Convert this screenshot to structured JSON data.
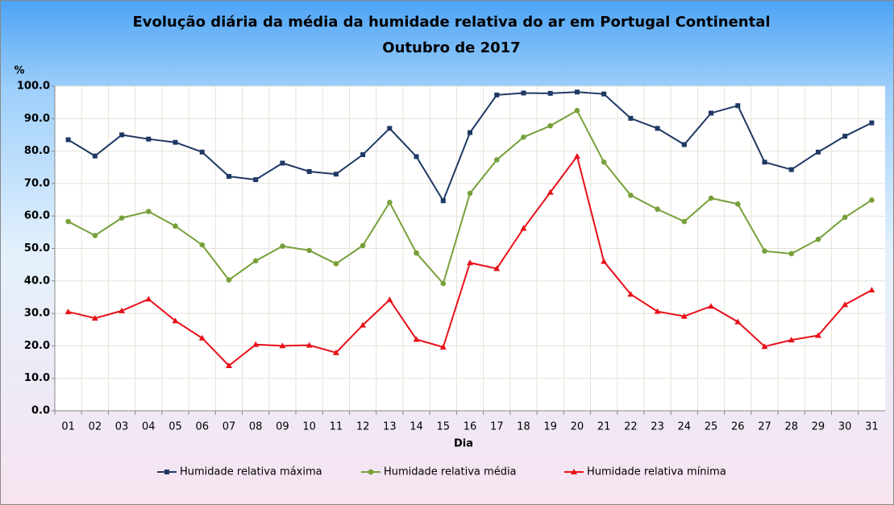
{
  "chart_data": {
    "type": "line",
    "title": "Evolução diária da média da humidade relativa do ar em Portugal Continental",
    "subtitle": "Outubro de 2017",
    "y_label": "%",
    "x_label": "Dia",
    "categories": [
      "01",
      "02",
      "03",
      "04",
      "05",
      "06",
      "07",
      "08",
      "09",
      "10",
      "11",
      "12",
      "13",
      "14",
      "15",
      "16",
      "17",
      "18",
      "19",
      "20",
      "21",
      "22",
      "23",
      "24",
      "25",
      "26",
      "27",
      "28",
      "29",
      "30",
      "31"
    ],
    "series": [
      {
        "name": "Humidade relativa máxima",
        "color": "#1f3864",
        "marker": "square",
        "values": [
          83.5,
          78.5,
          85,
          83.7,
          82.7,
          79.7,
          72.2,
          71.2,
          76.3,
          73.7,
          72.9,
          78.9,
          87,
          78.3,
          64.7,
          85.7,
          97.3,
          97.9,
          97.8,
          98.2,
          97.6,
          90.1,
          87,
          82,
          91.7,
          94,
          76.6,
          74.3,
          79.7,
          84.6,
          88.7
        ]
      },
      {
        "name": "Humidade relativa média",
        "color": "#77a03a",
        "marker": "circle",
        "values": [
          58.3,
          54,
          59.4,
          61.4,
          56.9,
          51.1,
          40.3,
          46.2,
          50.7,
          49.4,
          45.3,
          50.9,
          64.2,
          48.6,
          39.2,
          67,
          77.3,
          84.3,
          87.8,
          92.5,
          76.6,
          66.4,
          62.1,
          58.3,
          65.5,
          63.7,
          49.2,
          48.4,
          52.8,
          59.6,
          64.9
        ]
      },
      {
        "name": "Humidade relativa mínima",
        "color": "#e8101a",
        "marker": "triangle",
        "values": [
          30.5,
          28.5,
          30.8,
          34.4,
          27.7,
          22.4,
          13.9,
          20.4,
          20,
          20.2,
          17.9,
          26.4,
          34.2,
          22,
          19.6,
          45.6,
          43.8,
          56.2,
          67.3,
          78.4,
          46,
          35.9,
          30.6,
          29.1,
          32.2,
          27.4,
          19.8,
          21.8,
          23.2,
          32.7,
          37.2
        ]
      }
    ],
    "ylim": [
      0,
      100
    ],
    "yticks": [
      {
        "value": 0,
        "label": "0.0"
      },
      {
        "value": 10,
        "label": "10.0"
      },
      {
        "value": 20,
        "label": "20.0"
      },
      {
        "value": 30,
        "label": "30.0"
      },
      {
        "value": 40,
        "label": "40.0"
      },
      {
        "value": 50,
        "label": "50.0"
      },
      {
        "value": 60,
        "label": "60.0"
      },
      {
        "value": 70,
        "label": "70.0"
      },
      {
        "value": 80,
        "label": "80.0"
      },
      {
        "value": 90,
        "label": "90.0"
      },
      {
        "value": 100,
        "label": "100.0"
      }
    ],
    "grid": true,
    "legend": "bottom"
  }
}
